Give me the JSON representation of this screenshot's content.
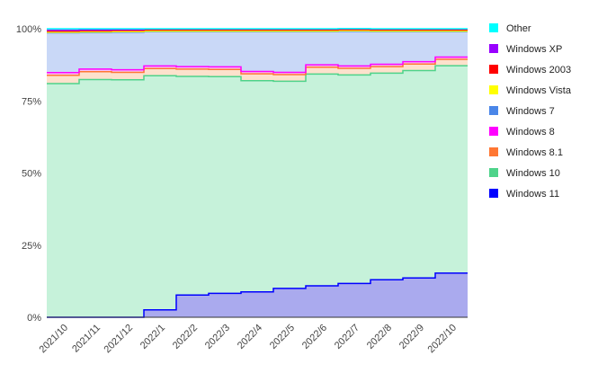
{
  "chart_data": {
    "type": "area",
    "stacked": true,
    "step": true,
    "categories": [
      "2021/10",
      "2021/11",
      "2021/12",
      "2022/1",
      "2022/2",
      "2022/3",
      "2022/4",
      "2022/5",
      "2022/6",
      "2022/7",
      "2022/8",
      "2022/9",
      "2022/10"
    ],
    "ylim": [
      0,
      100
    ],
    "yticks": [
      "0%",
      "25%",
      "50%",
      "75%",
      "100%"
    ],
    "grid": true,
    "legend_position": "right",
    "series": [
      {
        "name": "Windows 11",
        "color": "#0000ff",
        "fill": "#aaaaee",
        "values": [
          0,
          0,
          0,
          2.6,
          7.7,
          8.3,
          8.8,
          10.0,
          10.9,
          11.7,
          13.0,
          13.6,
          15.3
        ]
      },
      {
        "name": "Windows 10",
        "color": "#4ed38a",
        "fill": "#c6f2da",
        "values": [
          81.0,
          82.4,
          82.3,
          81.1,
          75.8,
          75.1,
          73.2,
          71.8,
          73.4,
          72.3,
          71.6,
          71.9,
          71.9
        ]
      },
      {
        "name": "Windows 8.1",
        "color": "#ff7733",
        "fill": "#fde1cc",
        "values": [
          2.9,
          2.7,
          2.6,
          2.5,
          2.5,
          2.5,
          2.4,
          2.3,
          2.4,
          2.3,
          2.3,
          2.3,
          2.2
        ]
      },
      {
        "name": "Windows 8",
        "color": "#ff00ff",
        "fill": "#f6c6f6",
        "values": [
          0.9,
          0.9,
          0.9,
          0.9,
          0.9,
          0.9,
          0.8,
          0.8,
          0.8,
          0.8,
          0.8,
          0.8,
          0.8
        ]
      },
      {
        "name": "Windows 7",
        "color": "#4a86e8",
        "fill": "#c9d8f7",
        "values": [
          13.8,
          12.7,
          13.0,
          11.9,
          12.1,
          12.2,
          13.8,
          14.1,
          11.5,
          12.0,
          11.3,
          10.4,
          8.8
        ]
      },
      {
        "name": "Windows Vista",
        "color": "#ffff00",
        "fill": "#fffbbb",
        "values": [
          0.2,
          0.2,
          0.2,
          0.2,
          0.2,
          0.2,
          0.2,
          0.2,
          0.2,
          0.2,
          0.2,
          0.2,
          0.2
        ]
      },
      {
        "name": "Windows 2003",
        "color": "#ff0000",
        "fill": "#f6c0c0",
        "values": [
          0.4,
          0.4,
          0.4,
          0.4,
          0.4,
          0.4,
          0.4,
          0.4,
          0.4,
          0.4,
          0.4,
          0.4,
          0.4
        ]
      },
      {
        "name": "Windows XP",
        "color": "#9900ff",
        "fill": "#e2c6f6",
        "values": [
          0.3,
          0.3,
          0.3,
          0.3,
          0.3,
          0.3,
          0.3,
          0.3,
          0.3,
          0.3,
          0.3,
          0.3,
          0.3
        ]
      },
      {
        "name": "Other",
        "color": "#00ffff",
        "fill": "#c6f6f6",
        "values": [
          0.5,
          0.4,
          0.3,
          0.1,
          0.1,
          0.1,
          0.1,
          0.1,
          0.1,
          0.1,
          0.1,
          0.1,
          0.1
        ]
      }
    ],
    "legend_order": [
      "Other",
      "Windows XP",
      "Windows 2003",
      "Windows Vista",
      "Windows 7",
      "Windows 8",
      "Windows 8.1",
      "Windows 10",
      "Windows 11"
    ]
  }
}
